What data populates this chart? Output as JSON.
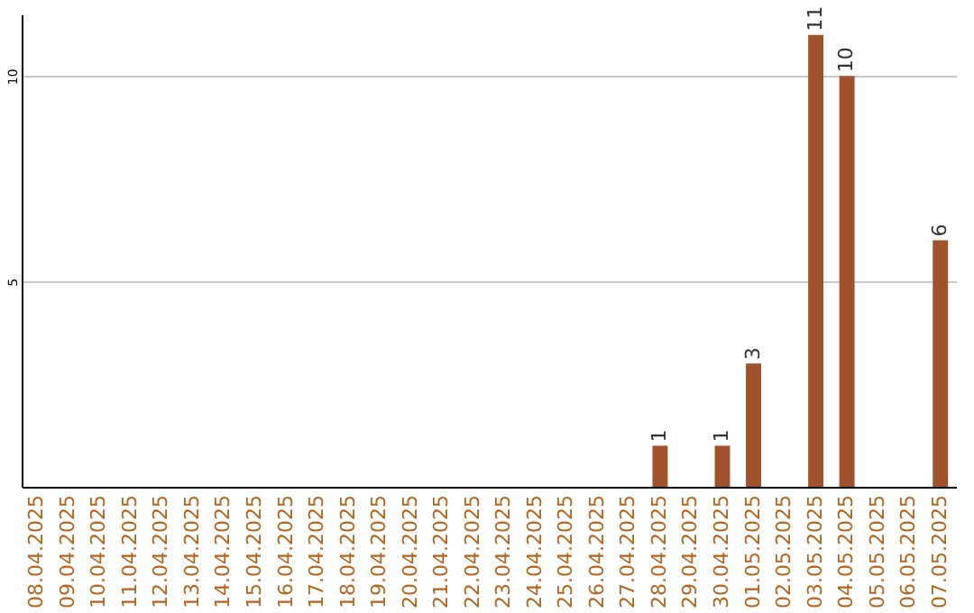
{
  "chart_data": {
    "type": "bar",
    "categories": [
      "08.04.2025",
      "09.04.2025",
      "10.04.2025",
      "11.04.2025",
      "12.04.2025",
      "13.04.2025",
      "14.04.2025",
      "15.04.2025",
      "16.04.2025",
      "17.04.2025",
      "18.04.2025",
      "19.04.2025",
      "20.04.2025",
      "21.04.2025",
      "22.04.2025",
      "23.04.2025",
      "24.04.2025",
      "25.04.2025",
      "26.04.2025",
      "27.04.2025",
      "28.04.2025",
      "29.04.2025",
      "30.04.2025",
      "01.05.2025",
      "02.05.2025",
      "03.05.2025",
      "04.05.2025",
      "05.05.2025",
      "06.05.2025",
      "07.05.2025"
    ],
    "values": [
      0,
      0,
      0,
      0,
      0,
      0,
      0,
      0,
      0,
      0,
      0,
      0,
      0,
      0,
      0,
      0,
      0,
      0,
      0,
      0,
      1,
      0,
      1,
      3,
      0,
      11,
      10,
      0,
      0,
      6
    ],
    "value_labels": [
      null,
      null,
      null,
      null,
      null,
      null,
      null,
      null,
      null,
      null,
      null,
      null,
      null,
      null,
      null,
      null,
      null,
      null,
      null,
      null,
      "1",
      null,
      "1",
      "3",
      null,
      "11",
      "10",
      null,
      null,
      "6"
    ],
    "color": "#a0522d",
    "ylim": [
      0,
      11.5
    ],
    "yticks": [
      5,
      10
    ],
    "grid": "y"
  }
}
